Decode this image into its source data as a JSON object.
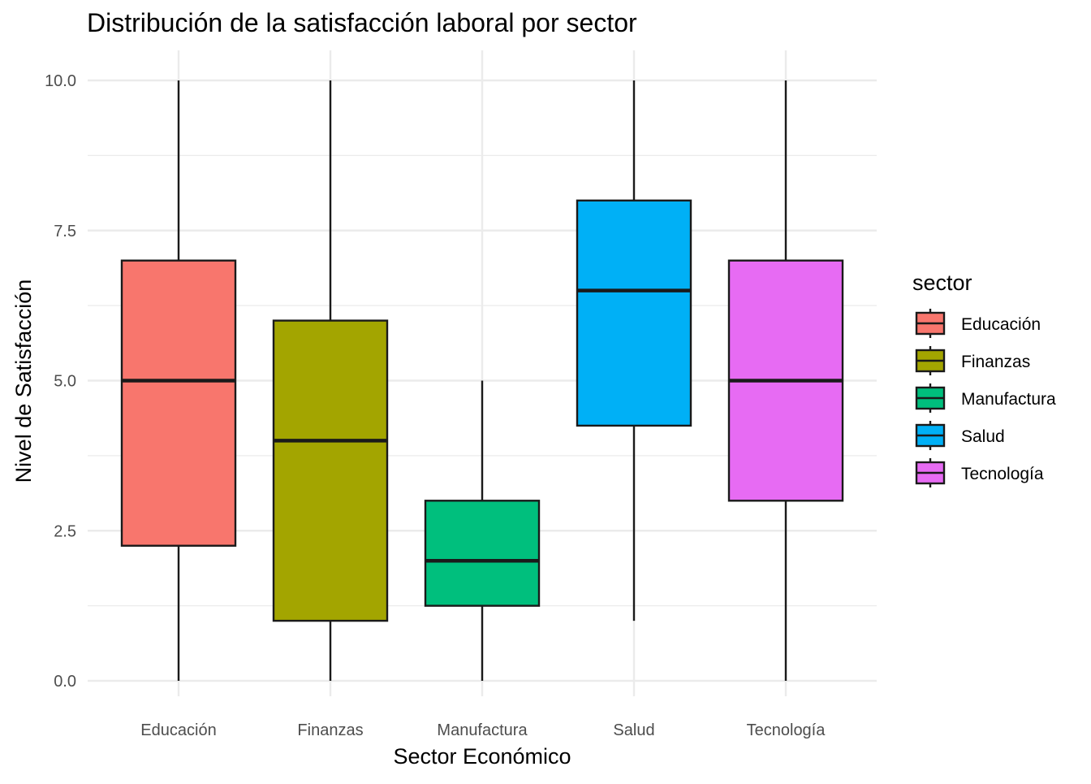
{
  "chart_data": {
    "type": "boxplot",
    "title": "Distribución de la satisfacción laboral por sector",
    "xlabel": "Sector Económico",
    "ylabel": "Nivel de Satisfacción",
    "ylim": [
      -0.5,
      10.5
    ],
    "yticks": [
      0.0,
      2.5,
      5.0,
      7.5,
      10.0
    ],
    "ytick_labels": [
      "0.0",
      "2.5",
      "5.0",
      "7.5",
      "10.0"
    ],
    "grid": true,
    "legend": {
      "title": "sector",
      "position": "right"
    },
    "categories": [
      "Educación",
      "Finanzas",
      "Manufactura",
      "Salud",
      "Tecnología"
    ],
    "boxes": [
      {
        "category": "Educación",
        "min": 0,
        "q1": 2.25,
        "median": 5,
        "q3": 7,
        "max": 10,
        "color": "#F8766D"
      },
      {
        "category": "Finanzas",
        "min": 0,
        "q1": 1,
        "median": 4,
        "q3": 6,
        "max": 10,
        "color": "#A3A500"
      },
      {
        "category": "Manufactura",
        "min": 0,
        "q1": 1.25,
        "median": 2,
        "q3": 3,
        "max": 5,
        "color": "#00BF7D"
      },
      {
        "category": "Salud",
        "min": 1,
        "q1": 4.25,
        "median": 6.5,
        "q3": 8,
        "max": 10,
        "color": "#00B0F6"
      },
      {
        "category": "Tecnología",
        "min": 0,
        "q1": 3,
        "median": 5,
        "q3": 7,
        "max": 10,
        "color": "#E76BF3"
      }
    ]
  }
}
